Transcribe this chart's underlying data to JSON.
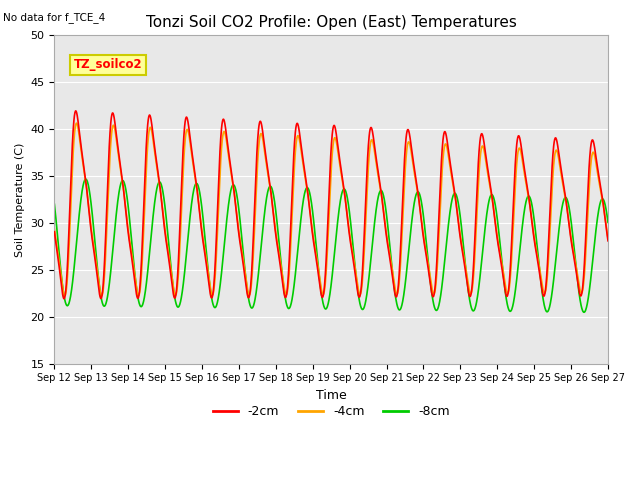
{
  "title": "Tonzi Soil CO2 Profile: Open (East) Temperatures",
  "no_data_note": "No data for f_TCE_4",
  "legend_box_label": "TZ_soilco2",
  "xlabel": "Time",
  "ylabel": "Soil Temperature (C)",
  "ylim": [
    15,
    50
  ],
  "xlim_days": [
    12,
    27
  ],
  "xtick_days": [
    12,
    13,
    14,
    15,
    16,
    17,
    18,
    19,
    20,
    21,
    22,
    23,
    24,
    25,
    26,
    27
  ],
  "colors": {
    "neg2cm": "#ff0000",
    "neg4cm": "#ffa500",
    "neg8cm": "#00cc00"
  },
  "legend_labels": [
    "-2cm",
    "-4cm",
    "-8cm"
  ],
  "plot_bg": "#e8e8e8",
  "line_width": 1.2
}
